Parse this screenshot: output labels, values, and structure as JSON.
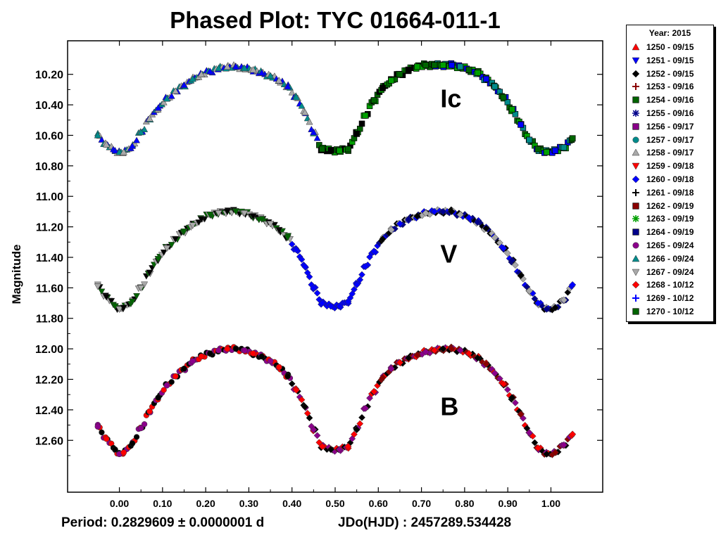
{
  "chart_data": {
    "type": "scatter",
    "title": "Phased Plot: TYC 01664-011-1",
    "xlabel": "",
    "ylabel": "Magnitude",
    "xlim": [
      -0.12,
      1.12
    ],
    "ylim": [
      12.94,
      9.98
    ],
    "y_inverted": true,
    "x_ticks": [
      "0.00",
      "0.10",
      "0.20",
      "0.30",
      "0.40",
      "0.50",
      "0.60",
      "0.70",
      "0.80",
      "0.90",
      "1.00"
    ],
    "y_ticks": [
      "10.20",
      "10.40",
      "10.60",
      "10.80",
      "11.00",
      "11.20",
      "11.40",
      "11.60",
      "11.80",
      "12.00",
      "12.20",
      "12.40",
      "12.60"
    ],
    "annotations": [
      {
        "text": "Ic",
        "x": 0.76,
        "y": 10.36
      },
      {
        "text": "V",
        "x": 0.76,
        "y": 11.38
      },
      {
        "text": "B",
        "x": 0.76,
        "y": 12.38
      }
    ],
    "footer": {
      "period": "Period: 0.2829609 ± 0.0000001 d",
      "jdo": "JDo(HJD) : 2457289.534428"
    },
    "legend": {
      "title": "Year: 2015",
      "placement": "right",
      "entries": [
        {
          "label": "1250 - 09/15",
          "color": "#ff0000",
          "marker": "triangle-up"
        },
        {
          "label": "1251 - 09/15",
          "color": "#0000ff",
          "marker": "triangle-down"
        },
        {
          "label": "1252 - 09/15",
          "color": "#000000",
          "marker": "diamond"
        },
        {
          "label": "1253 - 09/16",
          "color": "#8b0000",
          "marker": "plus"
        },
        {
          "label": "1254 - 09/16",
          "color": "#006400",
          "marker": "square"
        },
        {
          "label": "1255 - 09/16",
          "color": "#00008b",
          "marker": "star"
        },
        {
          "label": "1256 - 09/17",
          "color": "#8b008b",
          "marker": "square"
        },
        {
          "label": "1257 - 09/17",
          "color": "#008b8b",
          "marker": "circle"
        },
        {
          "label": "1258 - 09/17",
          "color": "#a9a9a9",
          "marker": "triangle-up"
        },
        {
          "label": "1259 - 09/18",
          "color": "#ff0000",
          "marker": "triangle-down"
        },
        {
          "label": "1260 - 09/18",
          "color": "#0000ff",
          "marker": "diamond"
        },
        {
          "label": "1261 - 09/18",
          "color": "#000000",
          "marker": "plus"
        },
        {
          "label": "1262 - 09/19",
          "color": "#8b0000",
          "marker": "square"
        },
        {
          "label": "1263 - 09/19",
          "color": "#00a000",
          "marker": "star"
        },
        {
          "label": "1264 - 09/19",
          "color": "#00008b",
          "marker": "square"
        },
        {
          "label": "1265 - 09/24",
          "color": "#8b008b",
          "marker": "circle"
        },
        {
          "label": "1266 - 09/24",
          "color": "#008b8b",
          "marker": "triangle-up"
        },
        {
          "label": "1267 - 09/24",
          "color": "#a9a9a9",
          "marker": "triangle-down"
        },
        {
          "label": "1268 - 10/12",
          "color": "#ff0000",
          "marker": "diamond"
        },
        {
          "label": "1269 - 10/12",
          "color": "#0000ff",
          "marker": "plus"
        },
        {
          "label": "1270 - 10/12",
          "color": "#006400",
          "marker": "square"
        }
      ]
    },
    "series": [
      {
        "band": "Ic",
        "segments": [
          {
            "x_range": [
              -0.05,
              0.46
            ],
            "colors": [
              "#008b8b",
              "#a9a9a9",
              "#0000ff"
            ],
            "marker": "triangle-up"
          },
          {
            "x_range": [
              0.37,
              0.72
            ],
            "colors": [
              "#006400",
              "#000000",
              "#00a000"
            ],
            "marker": "square"
          },
          {
            "x_range": [
              0.72,
              1.05
            ],
            "colors": [
              "#006400",
              "#00a000",
              "#0000ff",
              "#008b8b"
            ],
            "marker": "square"
          }
        ],
        "points": [
          {
            "x": -0.05,
            "y": 10.6
          },
          {
            "x": -0.03,
            "y": 10.66
          },
          {
            "x": -0.01,
            "y": 10.7
          },
          {
            "x": 0.0,
            "y": 10.71
          },
          {
            "x": 0.01,
            "y": 10.71
          },
          {
            "x": 0.03,
            "y": 10.67
          },
          {
            "x": 0.05,
            "y": 10.58
          },
          {
            "x": 0.07,
            "y": 10.49
          },
          {
            "x": 0.09,
            "y": 10.42
          },
          {
            "x": 0.11,
            "y": 10.36
          },
          {
            "x": 0.13,
            "y": 10.31
          },
          {
            "x": 0.15,
            "y": 10.27
          },
          {
            "x": 0.17,
            "y": 10.23
          },
          {
            "x": 0.19,
            "y": 10.2
          },
          {
            "x": 0.21,
            "y": 10.18
          },
          {
            "x": 0.23,
            "y": 10.16
          },
          {
            "x": 0.25,
            "y": 10.15
          },
          {
            "x": 0.27,
            "y": 10.15
          },
          {
            "x": 0.29,
            "y": 10.16
          },
          {
            "x": 0.31,
            "y": 10.17
          },
          {
            "x": 0.33,
            "y": 10.19
          },
          {
            "x": 0.35,
            "y": 10.21
          },
          {
            "x": 0.37,
            "y": 10.24
          },
          {
            "x": 0.39,
            "y": 10.28
          },
          {
            "x": 0.41,
            "y": 10.35
          },
          {
            "x": 0.43,
            "y": 10.45
          },
          {
            "x": 0.45,
            "y": 10.58
          },
          {
            "x": 0.47,
            "y": 10.69
          },
          {
            "x": 0.49,
            "y": 10.7
          },
          {
            "x": 0.51,
            "y": 10.7
          },
          {
            "x": 0.53,
            "y": 10.69
          },
          {
            "x": 0.55,
            "y": 10.59
          },
          {
            "x": 0.57,
            "y": 10.47
          },
          {
            "x": 0.59,
            "y": 10.37
          },
          {
            "x": 0.61,
            "y": 10.29
          },
          {
            "x": 0.63,
            "y": 10.24
          },
          {
            "x": 0.65,
            "y": 10.2
          },
          {
            "x": 0.67,
            "y": 10.17
          },
          {
            "x": 0.69,
            "y": 10.15
          },
          {
            "x": 0.71,
            "y": 10.14
          },
          {
            "x": 0.73,
            "y": 10.14
          },
          {
            "x": 0.75,
            "y": 10.14
          },
          {
            "x": 0.77,
            "y": 10.14
          },
          {
            "x": 0.79,
            "y": 10.15
          },
          {
            "x": 0.81,
            "y": 10.17
          },
          {
            "x": 0.83,
            "y": 10.19
          },
          {
            "x": 0.85,
            "y": 10.23
          },
          {
            "x": 0.87,
            "y": 10.28
          },
          {
            "x": 0.89,
            "y": 10.35
          },
          {
            "x": 0.91,
            "y": 10.43
          },
          {
            "x": 0.93,
            "y": 10.53
          },
          {
            "x": 0.95,
            "y": 10.63
          },
          {
            "x": 0.97,
            "y": 10.69
          },
          {
            "x": 0.99,
            "y": 10.71
          },
          {
            "x": 1.01,
            "y": 10.7
          },
          {
            "x": 1.03,
            "y": 10.68
          },
          {
            "x": 1.05,
            "y": 10.62
          }
        ]
      },
      {
        "band": "V",
        "segments": [
          {
            "x_range": [
              -0.05,
              0.4
            ],
            "colors": [
              "#a9a9a9",
              "#000000",
              "#006400"
            ],
            "marker": "triangle-down"
          },
          {
            "x_range": [
              0.4,
              0.6
            ],
            "colors": [
              "#0000ff"
            ],
            "marker": "diamond"
          },
          {
            "x_range": [
              0.6,
              1.05
            ],
            "colors": [
              "#0000ff",
              "#00008b",
              "#000000",
              "#a9a9a9"
            ],
            "marker": "diamond"
          }
        ],
        "points": [
          {
            "x": -0.05,
            "y": 11.59
          },
          {
            "x": -0.03,
            "y": 11.66
          },
          {
            "x": -0.01,
            "y": 11.72
          },
          {
            "x": 0.0,
            "y": 11.74
          },
          {
            "x": 0.01,
            "y": 11.73
          },
          {
            "x": 0.03,
            "y": 11.69
          },
          {
            "x": 0.05,
            "y": 11.6
          },
          {
            "x": 0.07,
            "y": 11.5
          },
          {
            "x": 0.09,
            "y": 11.41
          },
          {
            "x": 0.11,
            "y": 11.34
          },
          {
            "x": 0.13,
            "y": 11.28
          },
          {
            "x": 0.15,
            "y": 11.23
          },
          {
            "x": 0.17,
            "y": 11.19
          },
          {
            "x": 0.19,
            "y": 11.15
          },
          {
            "x": 0.21,
            "y": 11.12
          },
          {
            "x": 0.23,
            "y": 11.11
          },
          {
            "x": 0.25,
            "y": 11.1
          },
          {
            "x": 0.27,
            "y": 11.1
          },
          {
            "x": 0.29,
            "y": 11.11
          },
          {
            "x": 0.31,
            "y": 11.13
          },
          {
            "x": 0.33,
            "y": 11.15
          },
          {
            "x": 0.35,
            "y": 11.18
          },
          {
            "x": 0.37,
            "y": 11.22
          },
          {
            "x": 0.39,
            "y": 11.27
          },
          {
            "x": 0.41,
            "y": 11.35
          },
          {
            "x": 0.43,
            "y": 11.46
          },
          {
            "x": 0.45,
            "y": 11.6
          },
          {
            "x": 0.47,
            "y": 11.7
          },
          {
            "x": 0.49,
            "y": 11.72
          },
          {
            "x": 0.51,
            "y": 11.72
          },
          {
            "x": 0.53,
            "y": 11.69
          },
          {
            "x": 0.55,
            "y": 11.58
          },
          {
            "x": 0.57,
            "y": 11.46
          },
          {
            "x": 0.59,
            "y": 11.36
          },
          {
            "x": 0.61,
            "y": 11.28
          },
          {
            "x": 0.63,
            "y": 11.22
          },
          {
            "x": 0.65,
            "y": 11.18
          },
          {
            "x": 0.67,
            "y": 11.15
          },
          {
            "x": 0.69,
            "y": 11.13
          },
          {
            "x": 0.71,
            "y": 11.11
          },
          {
            "x": 0.73,
            "y": 11.1
          },
          {
            "x": 0.75,
            "y": 11.1
          },
          {
            "x": 0.77,
            "y": 11.1
          },
          {
            "x": 0.79,
            "y": 11.12
          },
          {
            "x": 0.81,
            "y": 11.14
          },
          {
            "x": 0.83,
            "y": 11.17
          },
          {
            "x": 0.85,
            "y": 11.21
          },
          {
            "x": 0.87,
            "y": 11.27
          },
          {
            "x": 0.89,
            "y": 11.34
          },
          {
            "x": 0.91,
            "y": 11.42
          },
          {
            "x": 0.93,
            "y": 11.52
          },
          {
            "x": 0.95,
            "y": 11.62
          },
          {
            "x": 0.97,
            "y": 11.7
          },
          {
            "x": 0.99,
            "y": 11.74
          },
          {
            "x": 1.01,
            "y": 11.73
          },
          {
            "x": 1.03,
            "y": 11.68
          },
          {
            "x": 1.05,
            "y": 11.58
          }
        ]
      },
      {
        "band": "B",
        "segments": [
          {
            "x_range": [
              -0.05,
              0.4
            ],
            "colors": [
              "#8b008b",
              "#ff0000",
              "#000000"
            ],
            "marker": "circle"
          },
          {
            "x_range": [
              0.4,
              0.6
            ],
            "colors": [
              "#ff0000",
              "#000000",
              "#8b008b"
            ],
            "marker": "diamond"
          },
          {
            "x_range": [
              0.6,
              1.05
            ],
            "colors": [
              "#ff0000",
              "#000000",
              "#8b0000",
              "#8b008b"
            ],
            "marker": "diamond"
          }
        ],
        "points": [
          {
            "x": -0.05,
            "y": 12.51
          },
          {
            "x": -0.03,
            "y": 12.59
          },
          {
            "x": -0.01,
            "y": 12.66
          },
          {
            "x": 0.0,
            "y": 12.69
          },
          {
            "x": 0.01,
            "y": 12.68
          },
          {
            "x": 0.03,
            "y": 12.62
          },
          {
            "x": 0.05,
            "y": 12.52
          },
          {
            "x": 0.07,
            "y": 12.41
          },
          {
            "x": 0.09,
            "y": 12.32
          },
          {
            "x": 0.11,
            "y": 12.24
          },
          {
            "x": 0.13,
            "y": 12.18
          },
          {
            "x": 0.15,
            "y": 12.13
          },
          {
            "x": 0.17,
            "y": 12.08
          },
          {
            "x": 0.19,
            "y": 12.05
          },
          {
            "x": 0.21,
            "y": 12.03
          },
          {
            "x": 0.23,
            "y": 12.01
          },
          {
            "x": 0.25,
            "y": 12.0
          },
          {
            "x": 0.27,
            "y": 12.0
          },
          {
            "x": 0.29,
            "y": 12.01
          },
          {
            "x": 0.31,
            "y": 12.03
          },
          {
            "x": 0.33,
            "y": 12.05
          },
          {
            "x": 0.35,
            "y": 12.08
          },
          {
            "x": 0.37,
            "y": 12.12
          },
          {
            "x": 0.39,
            "y": 12.18
          },
          {
            "x": 0.41,
            "y": 12.27
          },
          {
            "x": 0.43,
            "y": 12.38
          },
          {
            "x": 0.45,
            "y": 12.53
          },
          {
            "x": 0.47,
            "y": 12.64
          },
          {
            "x": 0.49,
            "y": 12.66
          },
          {
            "x": 0.51,
            "y": 12.66
          },
          {
            "x": 0.53,
            "y": 12.64
          },
          {
            "x": 0.55,
            "y": 12.53
          },
          {
            "x": 0.57,
            "y": 12.39
          },
          {
            "x": 0.59,
            "y": 12.28
          },
          {
            "x": 0.61,
            "y": 12.19
          },
          {
            "x": 0.63,
            "y": 12.13
          },
          {
            "x": 0.65,
            "y": 12.09
          },
          {
            "x": 0.67,
            "y": 12.06
          },
          {
            "x": 0.69,
            "y": 12.04
          },
          {
            "x": 0.71,
            "y": 12.02
          },
          {
            "x": 0.73,
            "y": 12.01
          },
          {
            "x": 0.75,
            "y": 12.0
          },
          {
            "x": 0.77,
            "y": 12.0
          },
          {
            "x": 0.79,
            "y": 12.01
          },
          {
            "x": 0.81,
            "y": 12.03
          },
          {
            "x": 0.83,
            "y": 12.06
          },
          {
            "x": 0.85,
            "y": 12.1
          },
          {
            "x": 0.87,
            "y": 12.16
          },
          {
            "x": 0.89,
            "y": 12.23
          },
          {
            "x": 0.91,
            "y": 12.32
          },
          {
            "x": 0.93,
            "y": 12.43
          },
          {
            "x": 0.95,
            "y": 12.55
          },
          {
            "x": 0.97,
            "y": 12.65
          },
          {
            "x": 0.99,
            "y": 12.69
          },
          {
            "x": 1.01,
            "y": 12.68
          },
          {
            "x": 1.03,
            "y": 12.63
          },
          {
            "x": 1.05,
            "y": 12.56
          }
        ]
      }
    ]
  }
}
